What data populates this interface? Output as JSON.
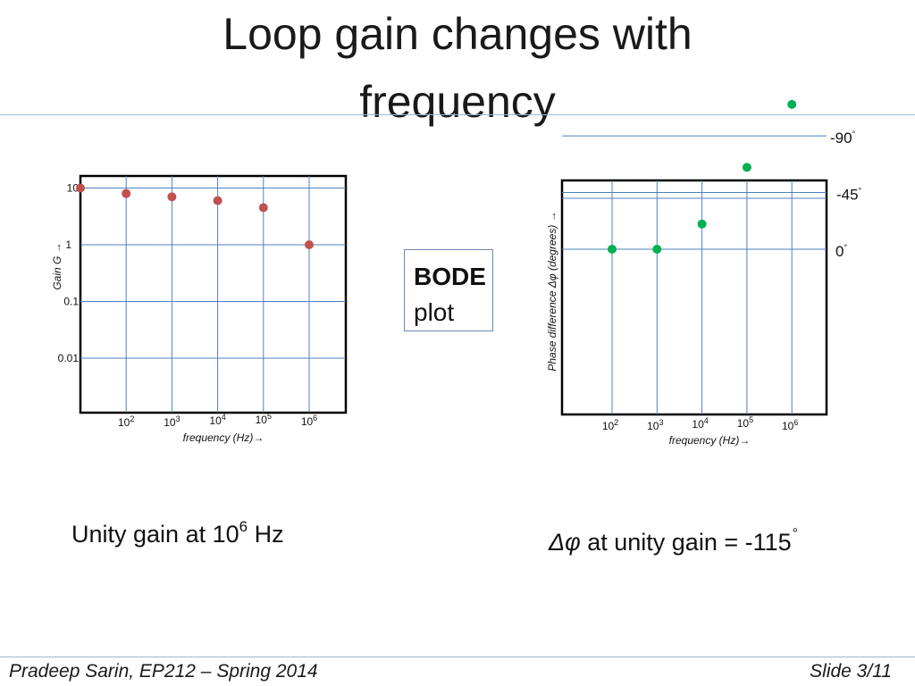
{
  "slide": {
    "title_line1": "Loop gain changes with",
    "title_line2": "frequency",
    "bode_bold": "BODE",
    "bode_plain": "plot",
    "caption_left": {
      "text": "Unity gain at 10",
      "sup": "6",
      "unit": " Hz"
    },
    "caption_right": {
      "symbol": "Δφ",
      "text": " at unity gain =  -115",
      "degree": "°"
    },
    "footer_left": "Pradeep Sarin, EP212 – Spring 2014",
    "footer_right": "Slide 3/11"
  },
  "colors": {
    "gain_points": "#c0504d",
    "phase_points": "#00b050",
    "grid": "#4f81bd",
    "rule": "#9fb6d4"
  },
  "chart_data": [
    {
      "type": "scatter",
      "title": "",
      "xlabel": "frequency (Hz)→",
      "ylabel": "Gain G →",
      "x_scale": "log",
      "y_scale": "log",
      "x_ticks": [
        {
          "base": "10",
          "exp": "2",
          "value": 100
        },
        {
          "base": "10",
          "exp": "3",
          "value": 1000
        },
        {
          "base": "10",
          "exp": "4",
          "value": 10000
        },
        {
          "base": "10",
          "exp": "5",
          "value": 100000
        },
        {
          "base": "10",
          "exp": "6",
          "value": 1000000
        }
      ],
      "y_ticks": [
        {
          "label": "10",
          "value": 10
        },
        {
          "label": "1",
          "value": 1
        },
        {
          "label": "0.1",
          "value": 0.1
        },
        {
          "label": "0.01",
          "value": 0.01
        }
      ],
      "x": [
        10,
        100,
        1000,
        10000,
        100000,
        1000000
      ],
      "y": [
        10,
        8,
        7,
        6,
        4.5,
        1
      ],
      "grid": true
    },
    {
      "type": "scatter",
      "title": "",
      "xlabel": "frequency (Hz)→",
      "ylabel": "Phase difference Δφ (degrees) →",
      "x_scale": "log",
      "x_ticks": [
        {
          "base": "10",
          "exp": "2",
          "value": 100
        },
        {
          "base": "10",
          "exp": "3",
          "value": 1000
        },
        {
          "base": "10",
          "exp": "4",
          "value": 10000
        },
        {
          "base": "10",
          "exp": "5",
          "value": 100000
        },
        {
          "base": "10",
          "exp": "6",
          "value": 1000000
        }
      ],
      "y_ticks": [
        {
          "label": "0",
          "deg": "°",
          "value": 0
        },
        {
          "label": "-45",
          "deg": "°",
          "value": -45
        },
        {
          "label": "-90",
          "deg": "°",
          "value": -90
        }
      ],
      "x": [
        100,
        1000,
        10000,
        100000,
        1000000
      ],
      "y": [
        0,
        0,
        -20,
        -65,
        -115
      ],
      "grid": true
    }
  ]
}
